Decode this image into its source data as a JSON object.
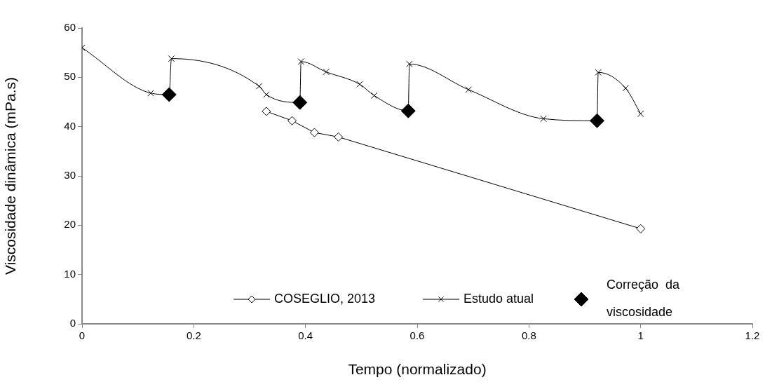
{
  "chart_data": {
    "type": "line",
    "xlabel": "Tempo (normalizado)",
    "ylabel": "Viscosidade dinâmica (mPa.s)",
    "xlim": [
      0,
      1.2
    ],
    "xticks": [
      0,
      0.2,
      0.4,
      0.6,
      0.8,
      1,
      1.2
    ],
    "ylim": [
      0,
      60
    ],
    "yticks": [
      0,
      10,
      20,
      30,
      40,
      50,
      60
    ],
    "grid": false,
    "legend": "bottom",
    "series": [
      {
        "name": "COSEGLIO, 2013",
        "color": "#000000",
        "marker": "diamond",
        "x": [
          0.33,
          0.376,
          0.416,
          0.459,
          1.0
        ],
        "values": [
          43.1,
          41.2,
          38.8,
          37.9,
          19.3
        ]
      },
      {
        "name": "Estudo atual",
        "color": "#000000",
        "marker": "cross",
        "x": [
          0,
          0.123,
          0.156,
          0.16,
          0.317,
          0.33,
          0.39,
          0.392,
          0.437,
          0.497,
          0.523,
          0.584,
          0.586,
          0.692,
          0.826,
          0.922,
          0.924,
          0.973,
          1.0
        ],
        "values": [
          56,
          46.8,
          46.5,
          53.8,
          48.2,
          46.5,
          44.9,
          53.2,
          51.1,
          48.6,
          46.3,
          43.2,
          52.7,
          47.5,
          41.6,
          41.2,
          51.0,
          47.8,
          42.6
        ]
      },
      {
        "name": "Correção  da viscosidade",
        "type": "scatter",
        "color": "#000000",
        "marker": "diamond",
        "x": [
          0.156,
          0.39,
          0.584,
          0.922
        ],
        "values": [
          46.5,
          44.9,
          43.2,
          41.2
        ]
      }
    ]
  }
}
